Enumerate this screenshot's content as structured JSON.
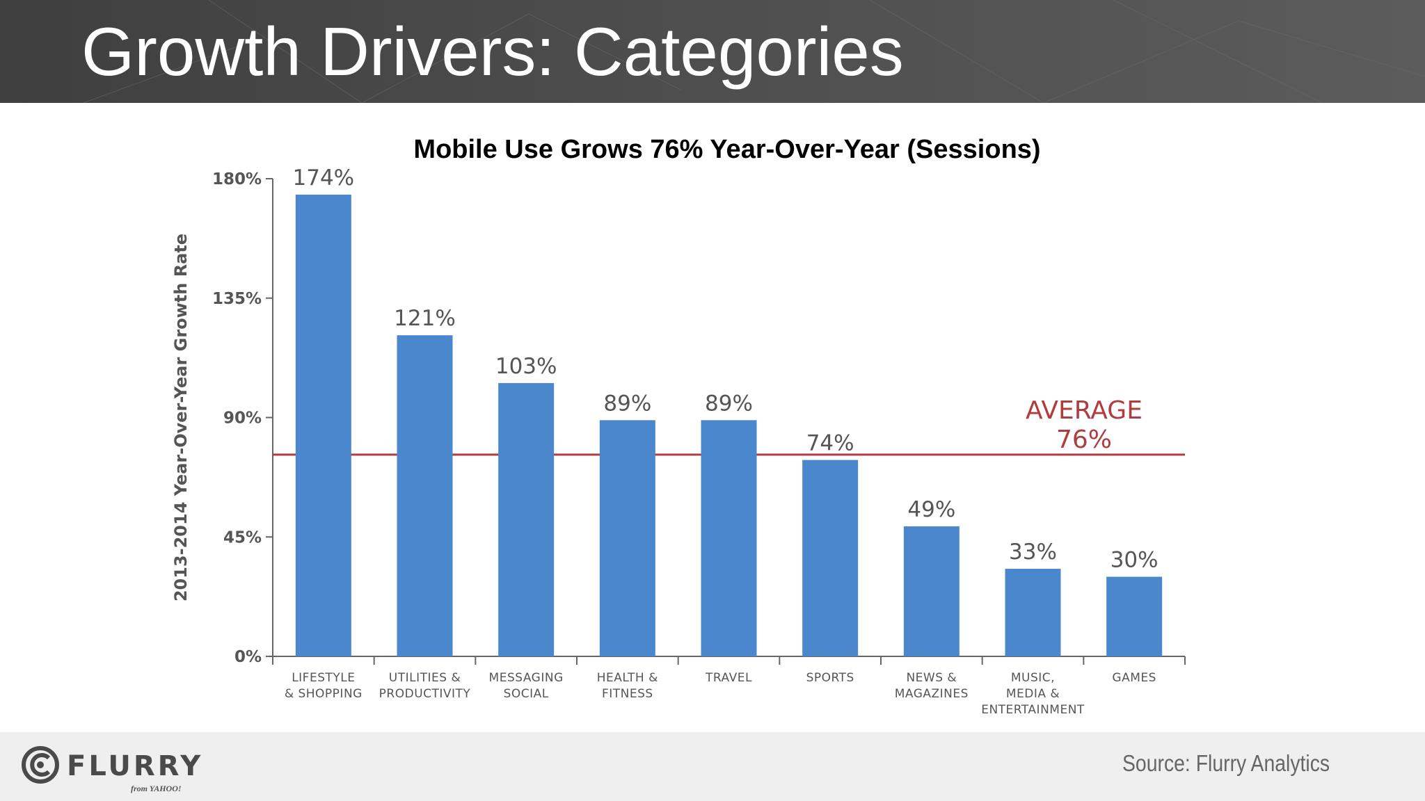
{
  "slide": {
    "title": "Growth Drivers: Categories",
    "source": "Source: Flurry Analytics"
  },
  "brand": {
    "logo_text": "FLURRY",
    "logo_sub": "from YAHOO!"
  },
  "chart_data": {
    "type": "bar",
    "title": "Mobile Use Grows 76% Year-Over-Year (Sessions)",
    "ylabel": "2013-2014 Year-Over-Year Growth Rate",
    "xlabel": "",
    "ylim": [
      0,
      180
    ],
    "yticks": [
      0,
      45,
      90,
      135,
      180
    ],
    "ytick_labels": [
      "0%",
      "45%",
      "90%",
      "135%",
      "180%"
    ],
    "categories": [
      [
        "LIFESTYLE",
        "& SHOPPING"
      ],
      [
        "UTILITIES &",
        "PRODUCTIVITY"
      ],
      [
        "MESSAGING",
        "SOCIAL"
      ],
      [
        "HEALTH &",
        "FITNESS"
      ],
      [
        "TRAVEL"
      ],
      [
        "SPORTS"
      ],
      [
        "NEWS &",
        "MAGAZINES"
      ],
      [
        "MUSIC,",
        "MEDIA &",
        "ENTERTAINMENT"
      ],
      [
        "GAMES"
      ]
    ],
    "values": [
      174,
      121,
      103,
      89,
      89,
      74,
      49,
      33,
      30
    ],
    "value_labels": [
      "174%",
      "121%",
      "103%",
      "89%",
      "89%",
      "74%",
      "49%",
      "33%",
      "30%"
    ],
    "reference_line": {
      "value": 76,
      "label": [
        "AVERAGE",
        "76%"
      ]
    },
    "grid": false,
    "legend": "none",
    "colors": {
      "bar": "#4a87cc",
      "average": "#b03c40",
      "axis": "#666666",
      "text": "#555555"
    }
  }
}
